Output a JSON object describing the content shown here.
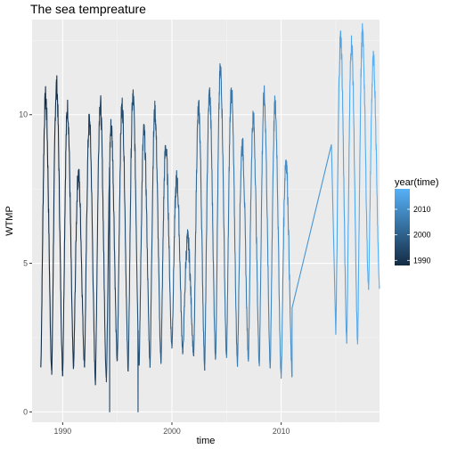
{
  "chart_data": {
    "type": "line",
    "title": "The sea tempreature",
    "xlabel": "time",
    "ylabel": "WTMP",
    "xlim": [
      1987.2,
      2019.0
    ],
    "ylim": [
      -0.35,
      13.2
    ],
    "x_ticks": [
      1990,
      2000,
      2010
    ],
    "x_tick_labels": [
      "1990",
      "2000",
      "2010"
    ],
    "y_ticks": [
      0,
      5,
      10
    ],
    "y_tick_labels": [
      "0",
      "5",
      "10"
    ],
    "grid": true,
    "legend": {
      "title": "year(time)",
      "placement": "right",
      "type": "colorbar",
      "range": [
        1988,
        2018
      ],
      "ticks": [
        1990,
        2000,
        2010
      ],
      "tick_labels": [
        "1990",
        "2000",
        "2010"
      ],
      "low_color": "#132B43",
      "high_color": "#56B1F7"
    },
    "series_segments": [
      {
        "years": [
          1988,
          1989,
          1990,
          1991,
          1992,
          1993,
          1994,
          1995,
          1996,
          1997,
          1998,
          1999,
          2000,
          2001,
          2002,
          2003,
          2004,
          2005,
          2006,
          2007,
          2008,
          2009,
          2010
        ],
        "summer_peak": [
          10.6,
          11.0,
          10.2,
          8.0,
          9.8,
          10.4,
          9.6,
          10.3,
          10.6,
          9.4,
          10.1,
          8.9,
          7.8,
          5.8,
          10.2,
          10.7,
          11.5,
          10.8,
          9.0,
          9.9,
          10.6,
          10.3,
          8.5
        ],
        "winter_min": [
          1.5,
          1.3,
          1.3,
          1.5,
          1.6,
          1.0,
          1.1,
          1.7,
          1.4,
          1.6,
          1.6,
          1.7,
          2.2,
          2.0,
          1.9,
          1.5,
          1.8,
          1.8,
          1.6,
          1.8,
          1.6,
          1.5,
          1.2
        ],
        "dips": [
          {
            "x": 1994.3,
            "y": 0.0
          },
          {
            "x": 1996.9,
            "y": 0.0
          }
        ]
      },
      {
        "years": [
          2015,
          2016,
          2017,
          2018
        ],
        "summer_peak": [
          12.6,
          12.4,
          12.7,
          11.8
        ],
        "winter_min": [
          2.7,
          2.4,
          2.3,
          4.2
        ]
      }
    ],
    "gap": {
      "from_x": 2011.0,
      "to_x": 2014.6
    },
    "colors": {
      "panel_background": "#EBEBEB",
      "grid_major": "#FFFFFF",
      "grid_minor": "#F5F5F5"
    }
  }
}
